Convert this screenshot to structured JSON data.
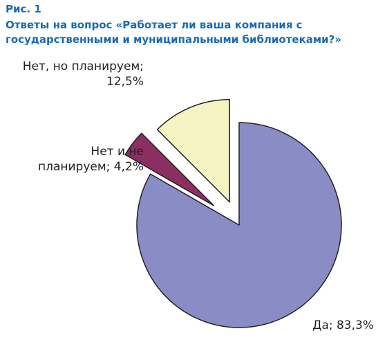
{
  "figure": {
    "label": "Рис. 1",
    "title": "Ответы на вопрос «Работает ли ваша компания с государственными и муниципальными библиотеками?»",
    "title_color": "#1a6bb0"
  },
  "chart_data": {
    "type": "pie",
    "title": "Ответы на вопрос «Работает ли ваша компания с государственными и муниципальными библиотеками?»",
    "unit": "%",
    "slices": [
      {
        "name": "Да",
        "value": 83.3,
        "label": "Да; 83,3%",
        "color": "#8a8cc6",
        "exploded": false
      },
      {
        "name": "Нет и не планируем",
        "value": 4.2,
        "label": "Нет и не планируем; 4,2%",
        "color": "#8b2f63",
        "exploded": true
      },
      {
        "name": "Нет, но планируем",
        "value": 12.5,
        "label": "Нет, но планируем; 12,5%",
        "color": "#f6f4c3",
        "exploded": true
      }
    ],
    "label_lines": [
      [
        "Да; 83,3%"
      ],
      [
        "Нет и не",
        "планируем; 4,2%"
      ],
      [
        "Нет, но планируем;",
        "12,5%"
      ]
    ]
  }
}
